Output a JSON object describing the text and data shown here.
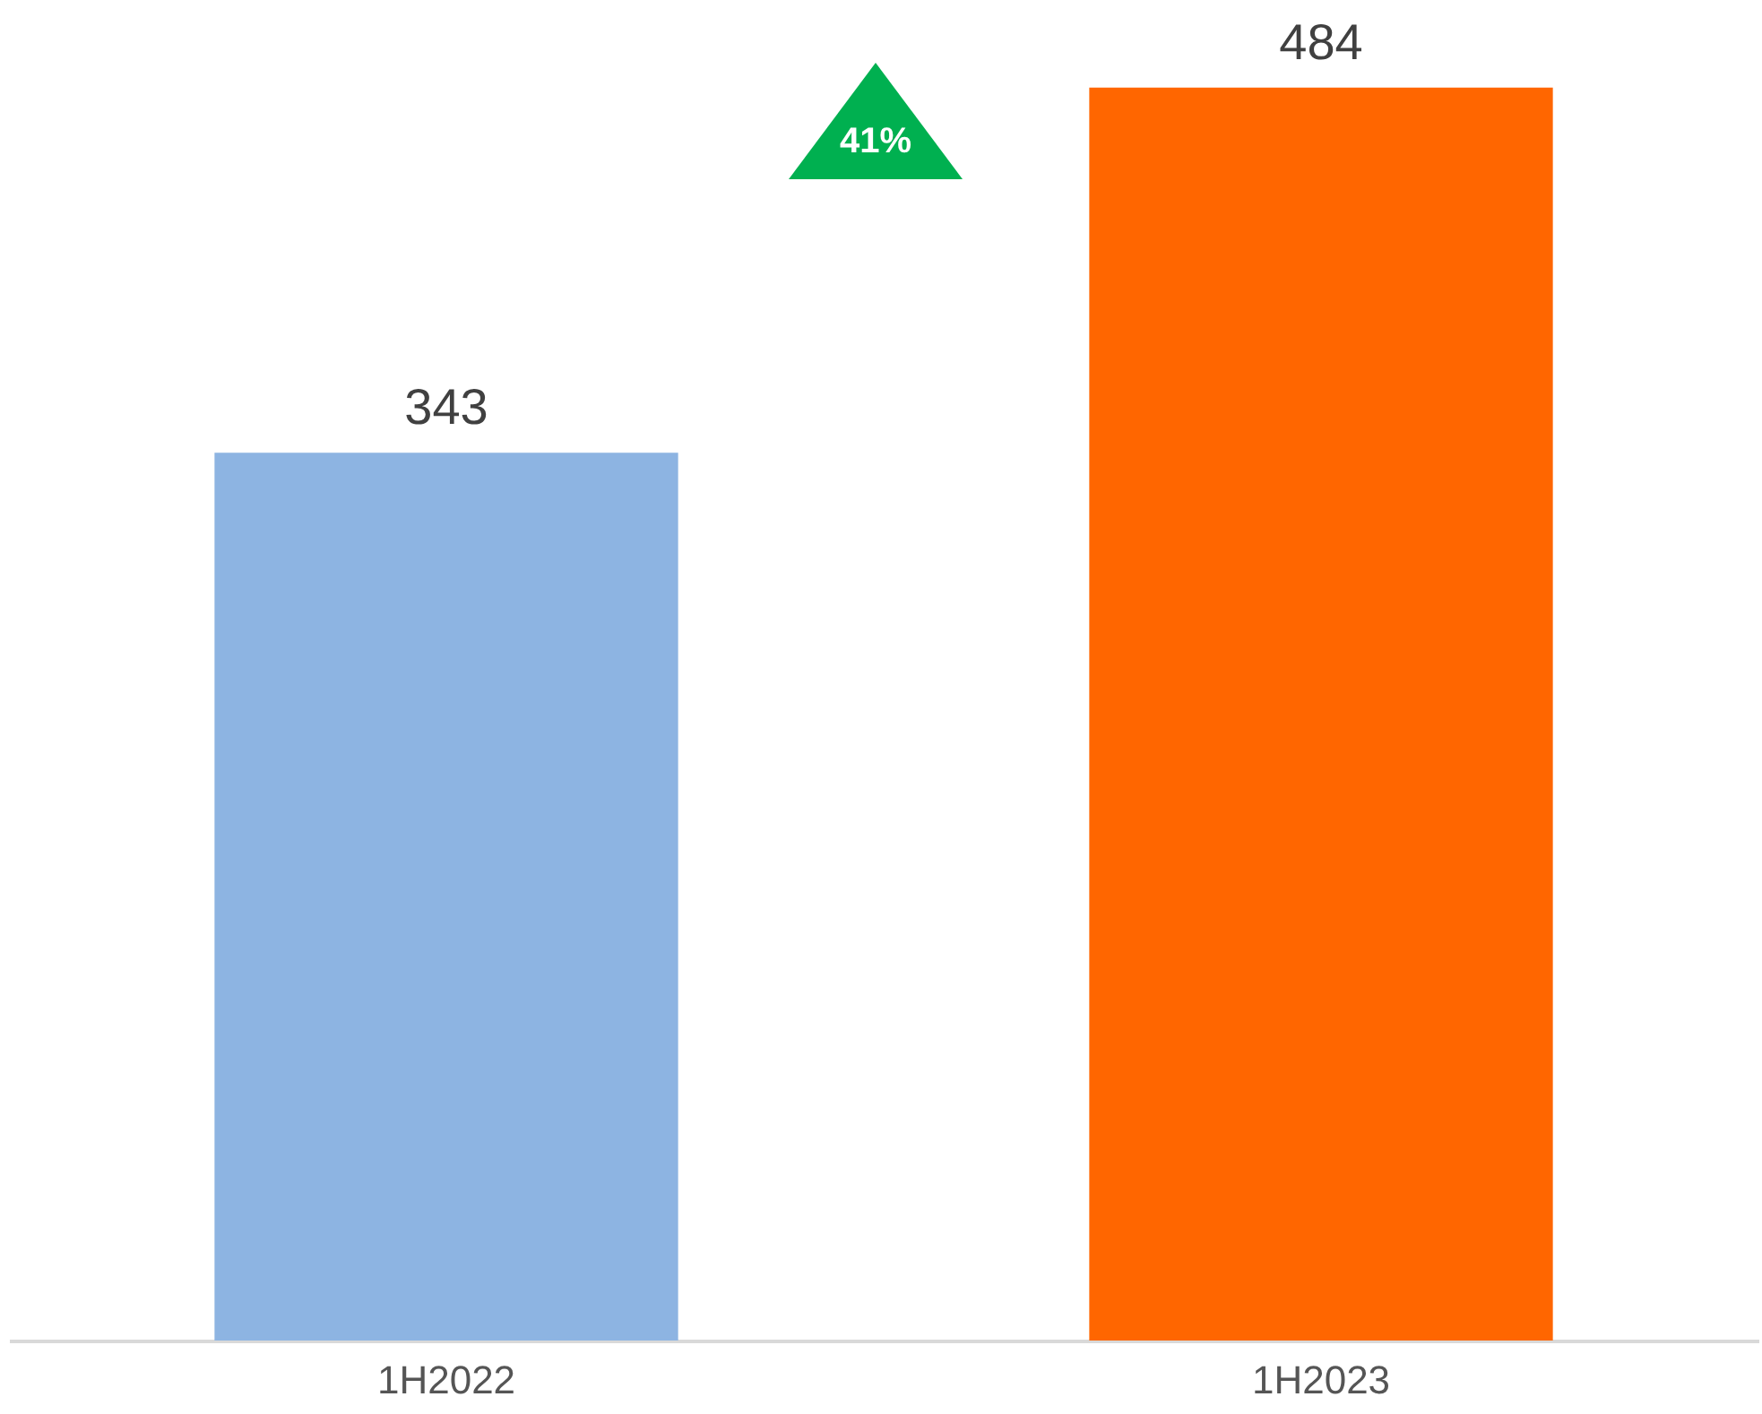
{
  "chart_data": {
    "type": "bar",
    "categories": [
      "1H2022",
      "1H2023"
    ],
    "values": [
      343,
      484
    ],
    "colors": [
      "#8db4e2",
      "#ff6600"
    ],
    "data_labels": true,
    "annotations": [
      "41%"
    ]
  }
}
